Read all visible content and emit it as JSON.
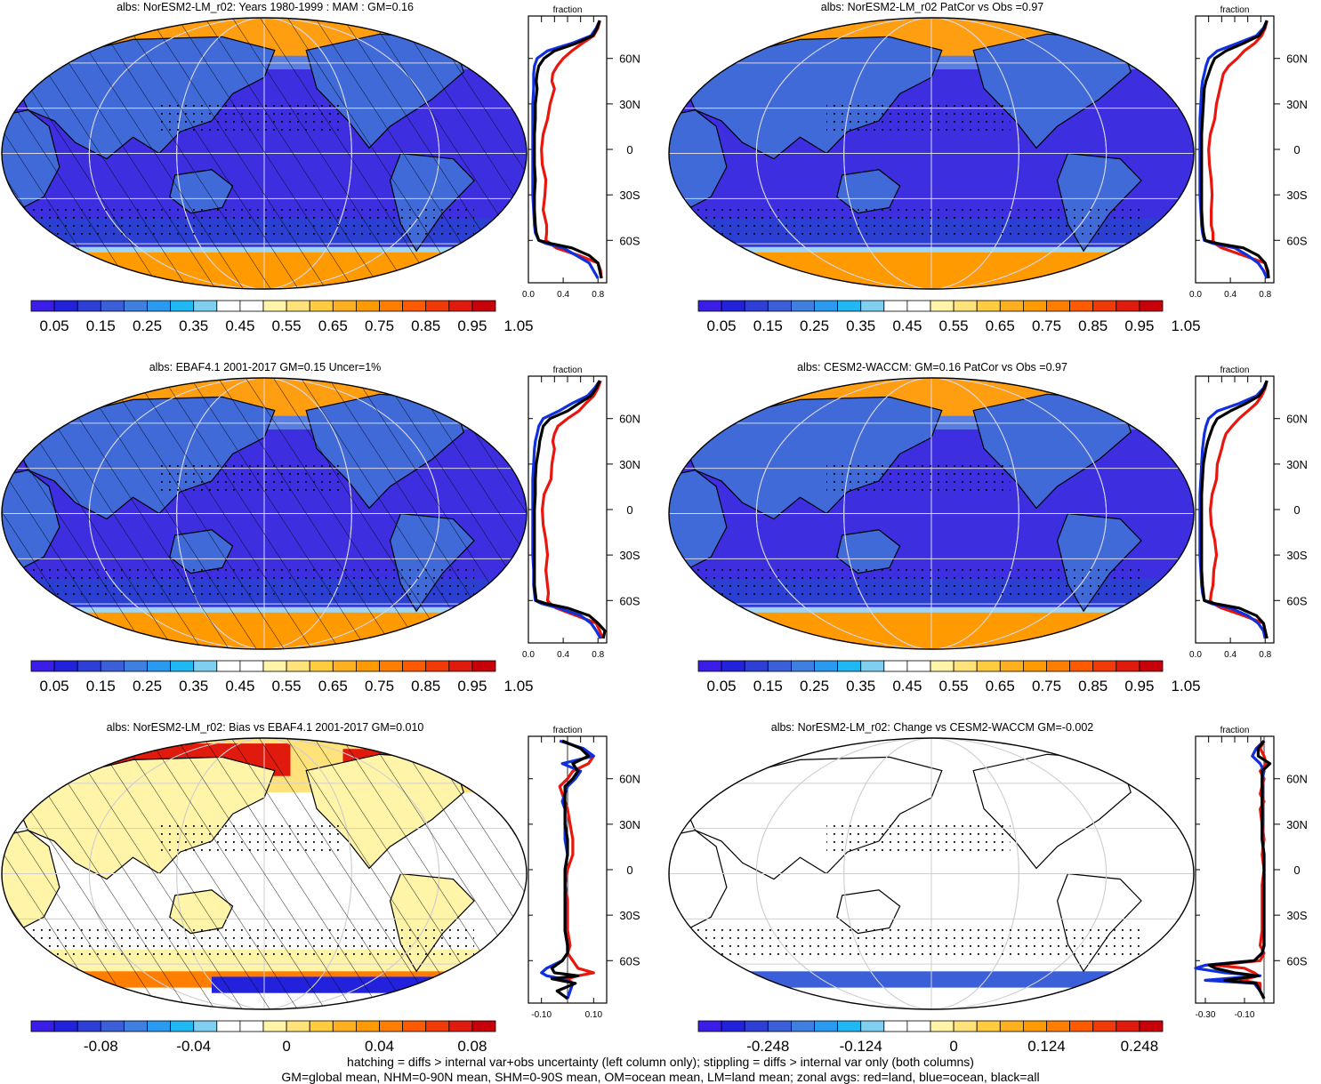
{
  "figure": {
    "footer_line1": "hatching = diffs > internal var+obs uncertainty (left column only); stippling = diffs > internal var only (both columns)",
    "footer_line2": "GM=global mean, NHM=0-90N mean, SHM=0-90S mean, OM=ocean mean, LM=land mean; zonal avgs: red=land, blue=ocean, black=all",
    "zonal_panel_title": "fraction",
    "lat_labels": [
      "60N",
      "30N",
      "0",
      "30S",
      "60S"
    ],
    "colors": {
      "land": "#e8160c",
      "ocean": "#1030e0",
      "all": "#000000"
    }
  },
  "chart_data": [
    {
      "type": "heatmap",
      "title": "albs: NorESM2-LM_r02: Years 1980-1999 : MAM : GM=0.16",
      "colorbar_labels": [
        "0.05",
        "0.15",
        "0.25",
        "0.35",
        "0.45",
        "0.55",
        "0.65",
        "0.75",
        "0.85",
        "0.95",
        "1.05"
      ],
      "colorbar_kind": "seq",
      "hatching": true,
      "stippling": true,
      "zonal": {
        "xlim": [
          0,
          0.9
        ],
        "xticks": [
          "0.0",
          "0.4",
          "0.8"
        ],
        "lat": [
          85,
          80,
          75,
          70,
          65,
          60,
          55,
          50,
          45,
          40,
          30,
          20,
          10,
          0,
          -10,
          -20,
          -30,
          -40,
          -50,
          -55,
          -60,
          -62,
          -65,
          -70,
          -75,
          -80,
          -85
        ],
        "land": [
          0.82,
          0.8,
          0.75,
          0.62,
          0.5,
          0.4,
          0.33,
          0.28,
          0.27,
          0.3,
          0.25,
          0.22,
          0.17,
          0.15,
          0.16,
          0.2,
          0.19,
          0.17,
          0.21,
          0.21,
          0.2,
          0.25,
          0.32,
          0.58,
          0.8,
          0.83,
          0.84
        ],
        "ocean": [
          0.82,
          0.78,
          0.72,
          0.5,
          0.22,
          0.1,
          0.07,
          0.06,
          0.06,
          0.06,
          0.05,
          0.05,
          0.05,
          0.05,
          0.05,
          0.05,
          0.05,
          0.06,
          0.07,
          0.08,
          0.12,
          0.2,
          0.4,
          0.55,
          0.7,
          0.75,
          0.8
        ],
        "all": [
          0.82,
          0.79,
          0.74,
          0.55,
          0.3,
          0.18,
          0.12,
          0.1,
          0.09,
          0.1,
          0.08,
          0.08,
          0.07,
          0.07,
          0.07,
          0.08,
          0.07,
          0.07,
          0.08,
          0.09,
          0.12,
          0.25,
          0.5,
          0.7,
          0.8,
          0.82,
          0.84
        ]
      }
    },
    {
      "type": "heatmap",
      "title": "albs: NorESM2-LM_r02 PatCor vs Obs =0.97",
      "colorbar_labels": [
        "0.05",
        "0.15",
        "0.25",
        "0.35",
        "0.45",
        "0.55",
        "0.65",
        "0.75",
        "0.85",
        "0.95",
        "1.05"
      ],
      "colorbar_kind": "seq",
      "hatching": false,
      "stippling": true,
      "zonal": {
        "xlim": [
          0,
          0.9
        ],
        "xticks": [
          "0.0",
          "0.4",
          "0.8"
        ],
        "lat": [
          85,
          80,
          75,
          70,
          65,
          60,
          55,
          50,
          45,
          40,
          30,
          20,
          10,
          0,
          -10,
          -20,
          -30,
          -40,
          -50,
          -55,
          -60,
          -62,
          -65,
          -70,
          -75,
          -80,
          -85
        ],
        "land": [
          0.82,
          0.8,
          0.76,
          0.68,
          0.56,
          0.48,
          0.38,
          0.32,
          0.3,
          0.28,
          0.24,
          0.22,
          0.17,
          0.15,
          0.16,
          0.18,
          0.19,
          0.18,
          0.18,
          0.2,
          0.2,
          0.22,
          0.3,
          0.55,
          0.8,
          0.82,
          0.84
        ],
        "ocean": [
          0.82,
          0.78,
          0.7,
          0.48,
          0.25,
          0.15,
          0.12,
          0.1,
          0.08,
          0.07,
          0.06,
          0.05,
          0.05,
          0.05,
          0.05,
          0.05,
          0.05,
          0.06,
          0.07,
          0.08,
          0.1,
          0.2,
          0.45,
          0.6,
          0.72,
          0.78,
          0.82
        ],
        "all": [
          0.82,
          0.79,
          0.73,
          0.55,
          0.35,
          0.22,
          0.18,
          0.15,
          0.12,
          0.1,
          0.09,
          0.08,
          0.07,
          0.07,
          0.07,
          0.07,
          0.07,
          0.07,
          0.08,
          0.09,
          0.11,
          0.25,
          0.55,
          0.72,
          0.8,
          0.83,
          0.84
        ]
      }
    },
    {
      "type": "heatmap",
      "title": "albs: EBAF4.1 2001-2017 GM=0.15 Uncer=1%",
      "colorbar_labels": [
        "0.05",
        "0.15",
        "0.25",
        "0.35",
        "0.45",
        "0.55",
        "0.65",
        "0.75",
        "0.85",
        "0.95",
        "1.05"
      ],
      "colorbar_kind": "seq",
      "hatching": true,
      "stippling": true,
      "zonal": {
        "xlim": [
          0,
          0.9
        ],
        "xticks": [
          "0.0",
          "0.4",
          "0.8"
        ],
        "lat": [
          85,
          80,
          75,
          70,
          65,
          60,
          55,
          50,
          45,
          40,
          30,
          20,
          10,
          0,
          -10,
          -20,
          -30,
          -40,
          -50,
          -55,
          -60,
          -62,
          -65,
          -70,
          -75,
          -80,
          -85
        ],
        "land": [
          0.83,
          0.8,
          0.75,
          0.66,
          0.58,
          0.45,
          0.34,
          0.3,
          0.28,
          0.3,
          0.27,
          0.26,
          0.18,
          0.16,
          0.17,
          0.2,
          0.22,
          0.2,
          0.22,
          0.23,
          0.22,
          0.25,
          0.32,
          0.55,
          0.78,
          0.82,
          0.85
        ],
        "ocean": [
          0.82,
          0.76,
          0.68,
          0.5,
          0.35,
          0.17,
          0.12,
          0.1,
          0.08,
          0.07,
          0.06,
          0.05,
          0.05,
          0.05,
          0.05,
          0.05,
          0.05,
          0.06,
          0.06,
          0.07,
          0.08,
          0.15,
          0.35,
          0.6,
          0.72,
          0.78,
          0.83
        ],
        "all": [
          0.82,
          0.78,
          0.72,
          0.58,
          0.45,
          0.25,
          0.17,
          0.15,
          0.13,
          0.12,
          0.09,
          0.08,
          0.08,
          0.07,
          0.07,
          0.07,
          0.07,
          0.07,
          0.07,
          0.08,
          0.09,
          0.2,
          0.45,
          0.7,
          0.8,
          0.88,
          0.86
        ]
      }
    },
    {
      "type": "heatmap",
      "title": "albs: CESM2-WACCM: GM=0.16 PatCor vs Obs =0.97",
      "colorbar_labels": [
        "0.05",
        "0.15",
        "0.25",
        "0.35",
        "0.45",
        "0.55",
        "0.65",
        "0.75",
        "0.85",
        "0.95",
        "1.05"
      ],
      "colorbar_kind": "seq",
      "hatching": false,
      "stippling": true,
      "zonal": {
        "xlim": [
          0,
          0.9
        ],
        "xticks": [
          "0.0",
          "0.4",
          "0.8"
        ],
        "lat": [
          85,
          80,
          75,
          70,
          65,
          60,
          55,
          50,
          45,
          40,
          30,
          20,
          10,
          0,
          -10,
          -20,
          -30,
          -40,
          -50,
          -55,
          -60,
          -62,
          -65,
          -70,
          -75,
          -80,
          -85
        ],
        "land": [
          0.82,
          0.8,
          0.76,
          0.7,
          0.6,
          0.5,
          0.42,
          0.35,
          0.32,
          0.3,
          0.25,
          0.24,
          0.19,
          0.17,
          0.18,
          0.22,
          0.24,
          0.21,
          0.2,
          0.18,
          0.17,
          0.2,
          0.3,
          0.55,
          0.78,
          0.8,
          0.82
        ],
        "ocean": [
          0.82,
          0.78,
          0.7,
          0.5,
          0.25,
          0.15,
          0.12,
          0.1,
          0.09,
          0.08,
          0.07,
          0.06,
          0.05,
          0.05,
          0.05,
          0.05,
          0.05,
          0.06,
          0.07,
          0.08,
          0.1,
          0.18,
          0.4,
          0.6,
          0.72,
          0.78,
          0.8
        ],
        "all": [
          0.82,
          0.79,
          0.73,
          0.58,
          0.4,
          0.25,
          0.2,
          0.17,
          0.14,
          0.12,
          0.09,
          0.08,
          0.07,
          0.07,
          0.07,
          0.07,
          0.07,
          0.07,
          0.08,
          0.09,
          0.1,
          0.22,
          0.5,
          0.7,
          0.78,
          0.8,
          0.82
        ]
      }
    },
    {
      "type": "heatmap",
      "title": "albs: NorESM2-LM_r02: Bias vs EBAF4.1 2001-2017 GM=0.010",
      "colorbar_labels": [
        "-0.08",
        "-0.04",
        "0",
        "0.04",
        "0.08"
      ],
      "colorbar_kind": "div",
      "hatching": true,
      "stippling": true,
      "zonal": {
        "xlim": [
          -0.15,
          0.15
        ],
        "xticks": [
          "-0.10",
          "0.10"
        ],
        "lat": [
          85,
          80,
          75,
          70,
          65,
          60,
          55,
          50,
          45,
          40,
          30,
          20,
          10,
          0,
          -10,
          -20,
          -30,
          -40,
          -50,
          -55,
          -60,
          -65,
          -68,
          -70,
          -72,
          -75,
          -80,
          -85
        ],
        "land": [
          -0.02,
          0.05,
          0.1,
          0.08,
          0.02,
          0.0,
          -0.03,
          -0.02,
          -0.01,
          0.0,
          0.01,
          0.02,
          0.02,
          0.0,
          -0.01,
          0.0,
          0.0,
          0.0,
          0.01,
          0.0,
          0.02,
          0.04,
          0.1,
          0.04,
          0.0,
          0.02,
          0.01,
          0.0
        ],
        "ocean": [
          -0.03,
          0.06,
          0.1,
          -0.02,
          0.05,
          0.03,
          0.0,
          -0.01,
          -0.02,
          -0.01,
          -0.01,
          -0.01,
          0.0,
          -0.01,
          -0.01,
          -0.01,
          -0.01,
          -0.01,
          0.0,
          0.0,
          -0.02,
          -0.08,
          -0.1,
          -0.08,
          -0.02,
          0.02,
          0.01,
          0.0
        ],
        "all": [
          -0.02,
          0.05,
          0.08,
          0.02,
          0.04,
          0.02,
          -0.01,
          -0.01,
          -0.01,
          -0.01,
          -0.01,
          0.0,
          0.0,
          -0.01,
          -0.01,
          -0.01,
          -0.01,
          -0.01,
          0.0,
          0.0,
          -0.02,
          -0.06,
          -0.05,
          0.04,
          -0.06,
          0.03,
          -0.04,
          0.0
        ]
      }
    },
    {
      "type": "heatmap",
      "title": "albs: NorESM2-LM_r02: Change vs CESM2-WACCM GM=-0.002",
      "colorbar_labels": [
        "-0.248",
        "-0.124",
        "0",
        "0.124",
        "0.248"
      ],
      "colorbar_kind": "div",
      "hatching": false,
      "stippling": true,
      "zonal": {
        "xlim": [
          -0.35,
          0.05
        ],
        "xticks": [
          "-0.30",
          "-0.10"
        ],
        "lat": [
          85,
          80,
          75,
          70,
          65,
          60,
          55,
          50,
          45,
          40,
          30,
          20,
          10,
          0,
          -10,
          -20,
          -30,
          -40,
          -50,
          -55,
          -60,
          -63,
          -65,
          -68,
          -70,
          -73,
          -75,
          -80,
          -85
        ],
        "land": [
          0.0,
          -0.02,
          0.0,
          0.01,
          -0.02,
          0.0,
          -0.01,
          -0.02,
          0.0,
          -0.02,
          -0.01,
          0.0,
          -0.01,
          0.0,
          -0.01,
          -0.01,
          -0.01,
          -0.01,
          -0.02,
          0.0,
          -0.02,
          -0.25,
          -0.1,
          -0.05,
          -0.03,
          -0.12,
          -0.02,
          -0.02,
          0.0
        ],
        "ocean": [
          0.0,
          -0.04,
          -0.06,
          -0.02,
          0.0,
          -0.01,
          -0.01,
          -0.01,
          -0.01,
          -0.01,
          -0.01,
          -0.01,
          0.0,
          0.0,
          0.0,
          0.0,
          0.0,
          0.0,
          0.0,
          -0.01,
          -0.05,
          -0.3,
          -0.35,
          -0.2,
          -0.02,
          -0.3,
          -0.05,
          -0.02,
          0.0
        ],
        "all": [
          0.0,
          -0.03,
          -0.03,
          0.03,
          -0.01,
          -0.01,
          -0.01,
          -0.01,
          -0.01,
          -0.01,
          -0.01,
          -0.01,
          0.0,
          0.0,
          0.0,
          0.0,
          0.0,
          0.0,
          0.0,
          -0.01,
          -0.05,
          -0.28,
          -0.25,
          -0.15,
          -0.03,
          -0.2,
          -0.04,
          -0.02,
          0.0
        ]
      }
    }
  ]
}
